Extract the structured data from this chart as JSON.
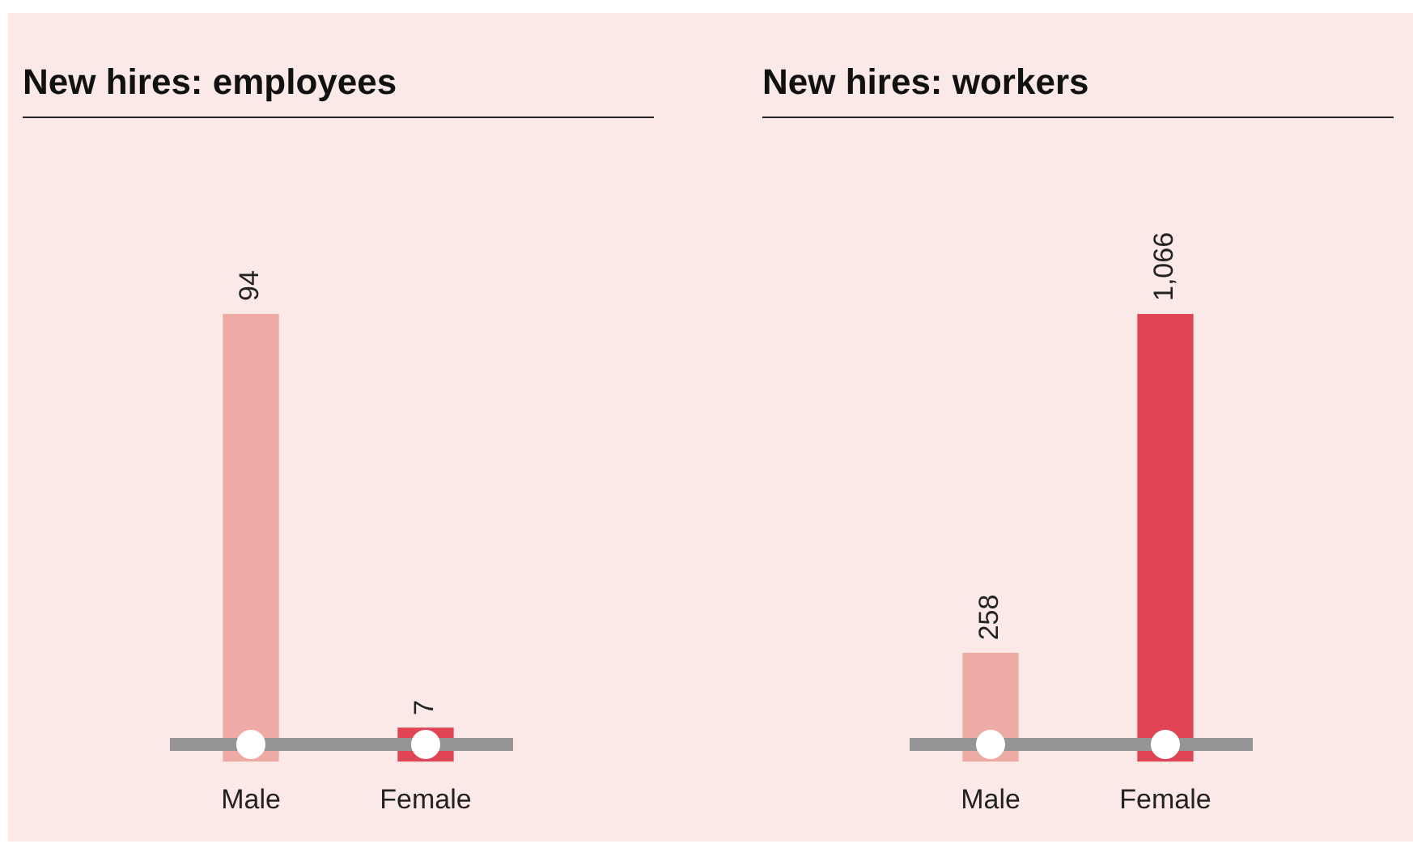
{
  "chart_data": [
    {
      "type": "bar",
      "title": "New hires: employees",
      "categories": [
        "Male",
        "Female"
      ],
      "values": [
        94,
        7
      ],
      "value_labels": [
        "94",
        "7"
      ],
      "colors": [
        "#eeaaa4",
        "#e04555"
      ],
      "data_labels": true,
      "tick_labels": "x"
    },
    {
      "type": "bar",
      "title": "New hires: workers",
      "categories": [
        "Male",
        "Female"
      ],
      "values": [
        258,
        1066
      ],
      "value_labels": [
        "258",
        "1,066"
      ],
      "colors": [
        "#eeaaa4",
        "#e04555"
      ],
      "data_labels": true,
      "tick_labels": "x"
    }
  ]
}
